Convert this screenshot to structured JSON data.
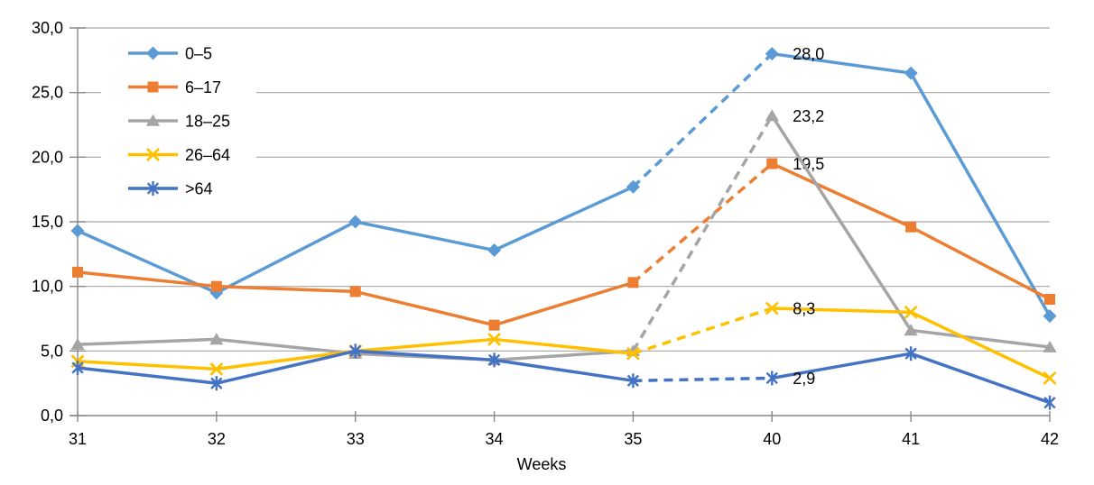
{
  "chart_data": {
    "type": "line",
    "title": "",
    "xlabel": "Weeks",
    "ylabel": "",
    "x_categories": [
      "31",
      "32",
      "33",
      "34",
      "35",
      "40",
      "41",
      "42"
    ],
    "ylim": [
      0,
      30
    ],
    "ytick_step": 5,
    "ytick_labels": [
      "0,0",
      "5,0",
      "10,0",
      "15,0",
      "20,0",
      "25,0",
      "30,0"
    ],
    "grid": true,
    "legend_position": "inside-top-left",
    "gap_segment": {
      "from_index": 4,
      "to_index": 5,
      "style": "dashed"
    },
    "series": [
      {
        "name": "0–5",
        "color": "#5B9BD5",
        "marker": "diamond",
        "values": [
          14.3,
          9.5,
          15.0,
          12.8,
          17.7,
          28.0,
          26.5,
          7.7
        ],
        "point_labels": {
          "5": "28,0"
        }
      },
      {
        "name": "6–17",
        "color": "#ED7D31",
        "marker": "square",
        "values": [
          11.1,
          10.0,
          9.6,
          7.0,
          10.3,
          19.5,
          14.6,
          9.0
        ],
        "point_labels": {
          "5": "19,5"
        }
      },
      {
        "name": "18–25",
        "color": "#A5A5A5",
        "marker": "triangle",
        "values": [
          5.5,
          5.9,
          4.8,
          4.3,
          5.0,
          23.2,
          6.6,
          5.3
        ],
        "point_labels": {
          "5": "23,2"
        }
      },
      {
        "name": "26–64",
        "color": "#FFC000",
        "marker": "x",
        "values": [
          4.2,
          3.6,
          5.0,
          5.9,
          4.8,
          8.3,
          8.0,
          2.9
        ],
        "point_labels": {
          "5": "8,3"
        }
      },
      {
        "name": ">64",
        "color": "#4472C4",
        "marker": "asterisk",
        "values": [
          3.7,
          2.5,
          5.0,
          4.3,
          2.7,
          2.9,
          4.8,
          1.0
        ],
        "point_labels": {
          "5": "2,9"
        }
      }
    ]
  },
  "style": {
    "grid_color": "#A6A6A6",
    "axis_color": "#898989",
    "text_color": "#000000",
    "background_color": "#FFFFFF"
  }
}
